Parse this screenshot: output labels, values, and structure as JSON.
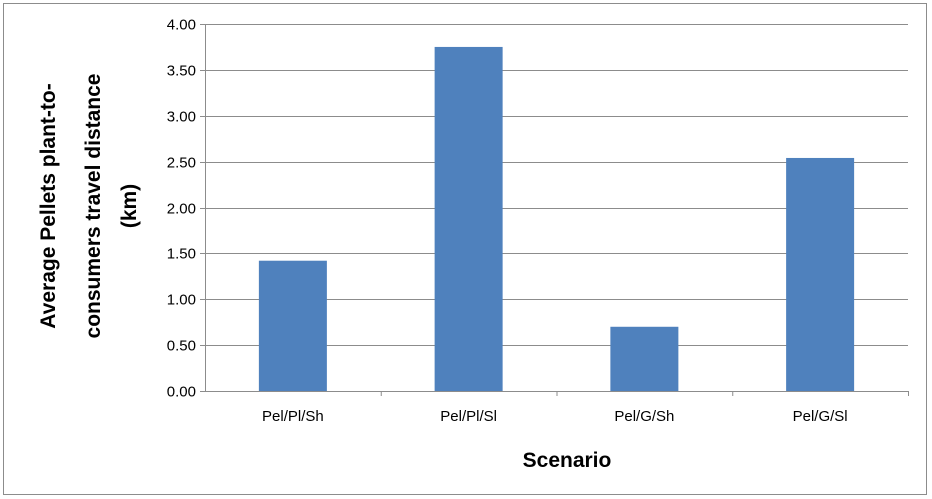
{
  "chart_data": {
    "type": "bar",
    "categories": [
      "Pel/Pl/Sh",
      "Pel/Pl/Sl",
      "Pel/G/Sh",
      "Pel/G/Sl"
    ],
    "values": [
      1.42,
      3.75,
      0.7,
      2.54
    ],
    "xlabel": "Scenario",
    "ylabel_lines": [
      "Average Pellets plant-to-",
      "consumers travel distance",
      "(km)"
    ],
    "ylim": [
      0,
      4
    ],
    "yticks": [
      0.0,
      0.5,
      1.0,
      1.5,
      2.0,
      2.5,
      3.0,
      3.5,
      4.0
    ],
    "ytick_labels": [
      "0.00",
      "0.50",
      "1.00",
      "1.50",
      "2.00",
      "2.50",
      "3.00",
      "3.50",
      "4.00"
    ],
    "grid": true,
    "legend": "none",
    "bar_color": "#4f81bd",
    "gridline_color": "#8c8c8c"
  }
}
